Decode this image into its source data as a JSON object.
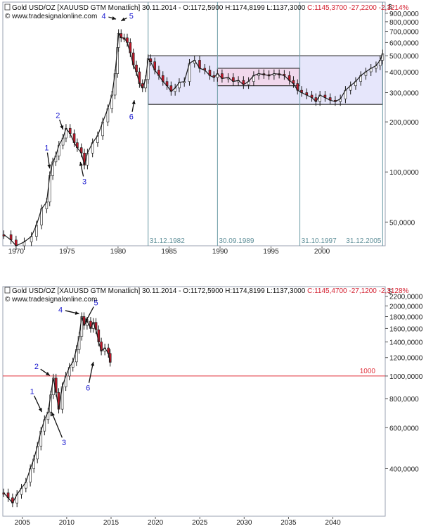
{
  "charts": [
    {
      "header": {
        "instrument": "Gold USD/OZ [XAUUSD GTM  Monatlich]",
        "ohlc": "30.11.2014 - O:1172,5900 H:1174,8199 L:1137,3000",
        "change": "C:1145,3700 -27,2200 -2,3214%",
        "source": "© www.tradesignalonline.com"
      },
      "currency": "$",
      "chart_data": {
        "type": "candlestick",
        "scale": "log",
        "x_ticks": [
          "1970",
          "1975",
          "1980",
          "1985",
          "1990",
          "1995",
          "2000"
        ],
        "y_ticks": [
          "900,0000",
          "800,0000",
          "700,0000",
          "600,0000",
          "500,0000",
          "400,0000",
          "300,0000",
          "200,0000",
          "100,0000",
          "50,0000"
        ],
        "y_tick_values": [
          900,
          800,
          700,
          600,
          500,
          400,
          300,
          200,
          100,
          50
        ],
        "x_range": [
          1968.7,
          2006.2
        ],
        "y_range": [
          36,
          1050
        ],
        "series": [
          {
            "x": [
              1968.8,
              1969.5,
              1970.0,
              1970.8,
              1971.5,
              1972.0,
              1972.5,
              1973.0,
              1973.3,
              1973.6,
              1973.9,
              1974.2,
              1974.6,
              1974.9,
              1975.3,
              1975.7,
              1976.0,
              1976.4,
              1976.7,
              1977.0,
              1977.5,
              1978.0,
              1978.5,
              1979.0,
              1979.4,
              1979.7,
              1979.95,
              1980.05,
              1980.3,
              1980.6,
              1980.9,
              1981.2,
              1981.5,
              1981.8,
              1982.1,
              1982.4,
              1982.7,
              1982.95,
              1983.2,
              1983.6,
              1984.0,
              1984.4,
              1984.8,
              1985.2,
              1985.6,
              1986.0,
              1986.5,
              1987.0,
              1987.5,
              1988.0,
              1988.5,
              1989.0,
              1989.4,
              1989.75,
              1990.2,
              1990.8,
              1991.3,
              1991.8,
              1992.3,
              1992.8,
              1993.3,
              1993.8,
              1994.3,
              1994.8,
              1995.3,
              1995.8,
              1996.3,
              1996.8,
              1997.2,
              1997.6,
              1998.0,
              1998.5,
              1999.0,
              1999.4,
              1999.8,
              2000.3,
              2000.8,
              2001.3,
              2001.8,
              2002.3,
              2002.8,
              2003.3,
              2003.8,
              2004.3,
              2004.8,
              2005.3,
              2005.7,
              2005.95
            ],
            "y": [
              42,
              39,
              36,
              38,
              41,
              48,
              60,
              66,
              95,
              115,
              125,
              145,
              160,
              183,
              170,
              150,
              140,
              130,
              110,
              130,
              150,
              165,
              200,
              240,
              290,
              390,
              560,
              680,
              640,
              640,
              600,
              520,
              440,
              400,
              340,
              320,
              360,
              480,
              460,
              410,
              380,
              350,
              330,
              305,
              320,
              345,
              350,
              450,
              470,
              420,
              410,
              380,
              370,
              390,
              365,
              370,
              350,
              355,
              335,
              350,
              380,
              390,
              385,
              380,
              390,
              387,
              380,
              355,
              340,
              310,
              300,
              290,
              280,
              265,
              290,
              280,
              270,
              265,
              275,
              310,
              330,
              350,
              380,
              400,
              420,
              435,
              470,
              513
            ]
          }
        ],
        "boxes": [
          {
            "start": 1982.95,
            "end": 2005.95,
            "low": 255,
            "high": 500,
            "color": "#e6e6fb"
          },
          {
            "start": 1989.75,
            "end": 1997.8,
            "low": 330,
            "high": 420,
            "color": "#f1d8ec"
          }
        ],
        "vlines": [
          {
            "x": 1982.95,
            "label": "31.12.1982"
          },
          {
            "x": 1989.75,
            "label": "30.09.1989"
          },
          {
            "x": 1997.83,
            "label": "31.10.1997"
          },
          {
            "x": 2005.95,
            "label": "31.12.2005"
          }
        ],
        "annotations": [
          {
            "text": "1",
            "lx": 1973.0,
            "ly": 140,
            "tx": 1973.3,
            "ty": 105
          },
          {
            "text": "2",
            "lx": 1974.1,
            "ly": 220,
            "tx": 1974.6,
            "ty": 180
          },
          {
            "text": "3",
            "lx": 1976.7,
            "ly": 88,
            "tx": 1976.3,
            "ty": 115
          },
          {
            "text": "4",
            "lx": 1978.6,
            "ly": 870,
            "tx": 1979.8,
            "ty": 830
          },
          {
            "text": "5",
            "lx": 1981.3,
            "ly": 870,
            "tx": 1980.3,
            "ty": 810
          },
          {
            "text": "6",
            "lx": 1981.3,
            "ly": 215,
            "tx": 1981.6,
            "ty": 270
          }
        ]
      }
    },
    {
      "header": {
        "instrument": "Gold USD/OZ [XAUUSD GTM  Monatlich]",
        "ohlc": "30.11.2014 - O:1172,5900 H:1174,8199 L:1137,3000",
        "change": "C:1145,4700 -27,1200 -2,3128%",
        "source": "© www.tradesignalonline.com"
      },
      "currency": "$",
      "chart_data": {
        "type": "candlestick",
        "scale": "log",
        "x_ticks": [
          "2005",
          "2010",
          "2015",
          "2020",
          "2025",
          "2030",
          "2035",
          "2040"
        ],
        "y_ticks": [
          "2200,0000",
          "2000,0000",
          "1800,0000",
          "1600,0000",
          "1400,0000",
          "1200,0000",
          "1000,0000",
          "800,0000",
          "600,0000",
          "400,0000"
        ],
        "y_tick_values": [
          2200,
          2000,
          1800,
          1600,
          1400,
          1200,
          1000,
          800,
          600,
          400
        ],
        "x_range": [
          2002.8,
          2045.9
        ],
        "y_range": [
          250,
          2420
        ],
        "series": [
          {
            "x": [
              2002.9,
              2003.4,
              2003.9,
              2004.4,
              2004.9,
              2005.4,
              2005.9,
              2006.3,
              2006.7,
              2007.1,
              2007.5,
              2007.9,
              2008.2,
              2008.5,
              2008.8,
              2009.1,
              2009.5,
              2009.9,
              2010.3,
              2010.7,
              2011.1,
              2011.4,
              2011.7,
              2011.95,
              2012.3,
              2012.7,
              2013.0,
              2013.3,
              2013.6,
              2013.9,
              2014.3,
              2014.7,
              2014.9
            ],
            "y": [
              315,
              300,
              285,
              310,
              330,
              350,
              400,
              440,
              500,
              580,
              650,
              700,
              830,
              980,
              850,
              720,
              900,
              1000,
              1090,
              1150,
              1300,
              1480,
              1800,
              1650,
              1720,
              1600,
              1700,
              1580,
              1400,
              1280,
              1320,
              1250,
              1145
            ]
          }
        ],
        "hlines": [
          {
            "y": 1000,
            "label": "1000",
            "color": "#e0303a"
          }
        ],
        "annotations": [
          {
            "text": "1",
            "lx": 2006.1,
            "ly": 860,
            "tx": 2007.2,
            "ty": 700
          },
          {
            "text": "2",
            "lx": 2006.6,
            "ly": 1100,
            "tx": 2008.1,
            "ty": 1005
          },
          {
            "text": "3",
            "lx": 2009.7,
            "ly": 520,
            "tx": 2008.3,
            "ty": 700
          },
          {
            "text": "4",
            "lx": 2009.3,
            "ly": 1930,
            "tx": 2011.4,
            "ty": 1850
          },
          {
            "text": "5",
            "lx": 2013.3,
            "ly": 2070,
            "tx": 2012.1,
            "ty": 1700
          },
          {
            "text": "6",
            "lx": 2012.4,
            "ly": 890,
            "tx": 2013.0,
            "ty": 1150
          }
        ]
      }
    }
  ]
}
